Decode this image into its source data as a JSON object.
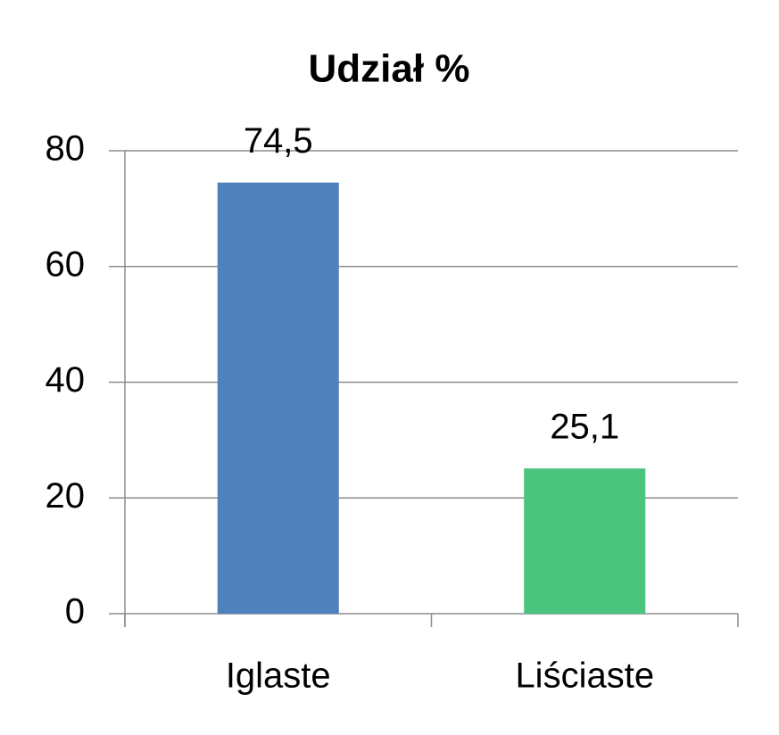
{
  "chart_data": {
    "type": "bar",
    "title": "Udział %",
    "categories": [
      "Iglaste",
      "Liściaste"
    ],
    "values": [
      74.5,
      25.1
    ],
    "value_labels": [
      "74,5",
      "25,1"
    ],
    "colors": [
      "#4f81bd",
      "#4bc47d"
    ],
    "ylim": [
      0,
      80
    ],
    "yticks": [
      0,
      20,
      40,
      60,
      80
    ],
    "grid": true
  }
}
